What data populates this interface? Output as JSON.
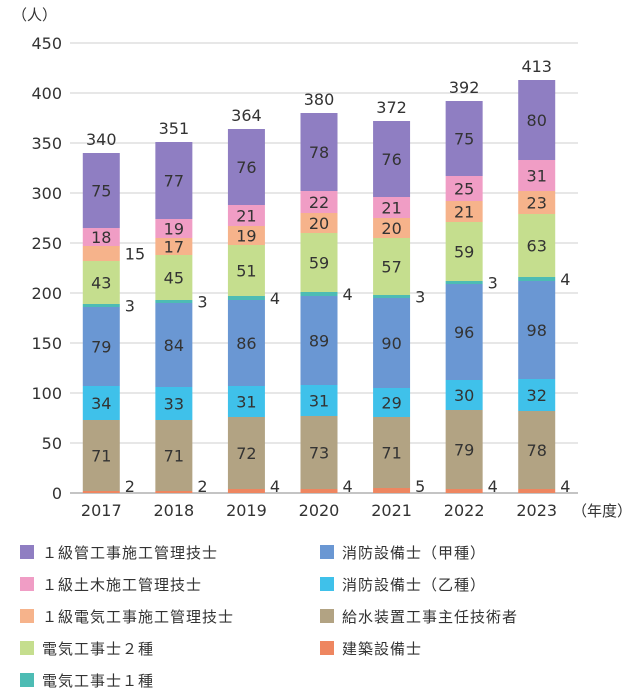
{
  "chart_data": {
    "type": "bar",
    "stacked": true,
    "y_unit_label": "（人）",
    "x_unit_label": "（年度）",
    "ylim": [
      0,
      450
    ],
    "yticks": [
      0,
      50,
      100,
      150,
      200,
      250,
      300,
      350,
      400,
      450
    ],
    "grid": true,
    "legend_position": "bottom",
    "categories": [
      "2017",
      "2018",
      "2019",
      "2020",
      "2021",
      "2022",
      "2023"
    ],
    "totals": [
      340,
      351,
      364,
      380,
      372,
      392,
      413
    ],
    "series": [
      {
        "name": "建築設備士",
        "color": "#ee8660",
        "values": [
          2,
          2,
          4,
          4,
          5,
          4,
          4
        ],
        "label_outside": true
      },
      {
        "name": "給水装置工事主任技術者",
        "color": "#b2a383",
        "values": [
          71,
          71,
          72,
          73,
          71,
          79,
          78
        ],
        "label_outside": false
      },
      {
        "name": "消防設備士（乙種）",
        "color": "#3fc1ea",
        "values": [
          34,
          33,
          31,
          31,
          29,
          30,
          32
        ],
        "label_outside": false
      },
      {
        "name": "消防設備士（甲種）",
        "color": "#6a97d3",
        "values": [
          79,
          84,
          86,
          89,
          90,
          96,
          98
        ],
        "label_outside": false
      },
      {
        "name": "電気工事士１種",
        "color": "#4dbcb4",
        "values": [
          3,
          3,
          4,
          4,
          3,
          3,
          4
        ],
        "label_outside": true
      },
      {
        "name": "電気工事士２種",
        "color": "#c5de8e",
        "values": [
          43,
          45,
          51,
          59,
          57,
          59,
          63
        ],
        "label_outside": false
      },
      {
        "name": "１級電気工事施工管理技士",
        "color": "#f6b38b",
        "values": [
          15,
          17,
          19,
          20,
          20,
          21,
          23
        ],
        "label_outside": false,
        "outside_index": [
          0
        ]
      },
      {
        "name": "１級土木施工管理技士",
        "color": "#f09dc5",
        "values": [
          18,
          19,
          21,
          22,
          21,
          25,
          31
        ],
        "label_outside": false
      },
      {
        "name": "１級管工事施工管理技士",
        "color": "#8f7ec2",
        "values": [
          75,
          77,
          76,
          78,
          76,
          75,
          80
        ],
        "label_outside": false
      }
    ]
  },
  "legend": [
    {
      "label": "１級管工事施工管理技士",
      "color": "#8f7ec2"
    },
    {
      "label": "消防設備士（甲種）",
      "color": "#6a97d3"
    },
    {
      "label": "１級土木施工管理技士",
      "color": "#f09dc5"
    },
    {
      "label": "消防設備士（乙種）",
      "color": "#3fc1ea"
    },
    {
      "label": "１級電気工事施工管理技士",
      "color": "#f6b38b"
    },
    {
      "label": "給水装置工事主任技術者",
      "color": "#b2a383"
    },
    {
      "label": "電気工事士２種",
      "color": "#c5de8e"
    },
    {
      "label": "建築設備士",
      "color": "#ee8660"
    },
    {
      "label": "電気工事士１種",
      "color": "#4dbcb4"
    }
  ]
}
